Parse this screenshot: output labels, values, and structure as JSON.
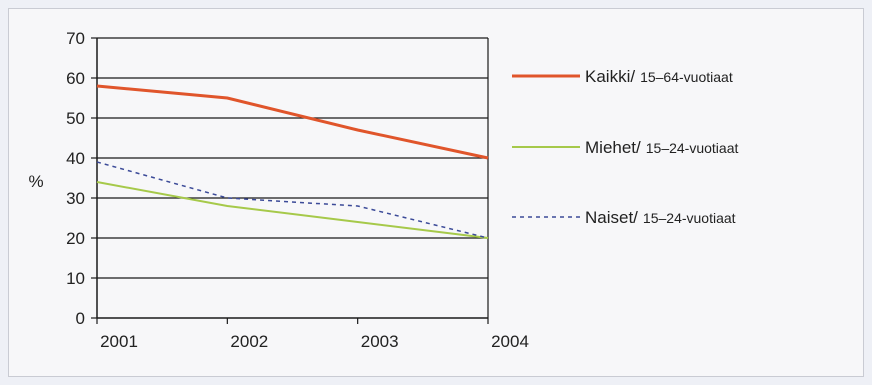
{
  "chart_data": {
    "type": "line",
    "title": "",
    "xlabel": "",
    "ylabel": "%",
    "ylim": [
      0,
      70
    ],
    "yticks": [
      "0",
      "10",
      "20",
      "30",
      "40",
      "50",
      "60",
      "70"
    ],
    "categories": [
      "2001",
      "2002",
      "2003",
      "2004"
    ],
    "grid": true,
    "legend_position": "right",
    "series": [
      {
        "name_main": "Kaikki/",
        "name_sub": "15–64-vuotiaat",
        "values": [
          58,
          55,
          47,
          40
        ],
        "color": "#e0552b",
        "style": "solid"
      },
      {
        "name_main": "Miehet/",
        "name_sub": "15–24-vuotiaat",
        "values": [
          34,
          28,
          24,
          20
        ],
        "color": "#a6c94a",
        "style": "solid"
      },
      {
        "name_main": "Naiset/",
        "name_sub": "15–24-vuotiaat",
        "values": [
          39,
          30,
          28,
          20
        ],
        "color": "#3b4a98",
        "style": "dashed"
      }
    ]
  }
}
